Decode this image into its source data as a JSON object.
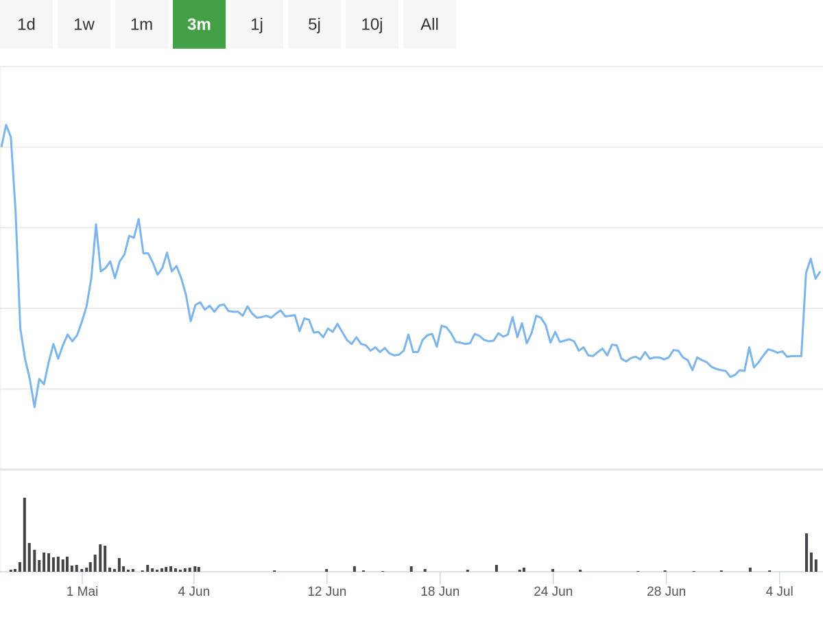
{
  "range_buttons": {
    "labels": [
      "1d",
      "1w",
      "1m",
      "3m",
      "1j",
      "5j",
      "10j",
      "All"
    ],
    "active": 3
  },
  "chart_data": [
    {
      "type": "line",
      "series": [
        {
          "color": "#7cb5ec",
          "values": [
            480,
            513,
            495,
            385,
            210,
            165,
            135,
            93,
            135,
            127,
            160,
            187,
            165,
            185,
            201,
            191,
            200,
            220,
            243,
            285,
            365,
            295,
            300,
            310,
            285,
            310,
            320,
            348,
            345,
            373,
            322,
            322,
            308,
            290,
            300,
            323,
            295,
            303,
            285,
            260,
            221,
            245,
            249,
            238,
            244,
            235,
            244,
            246,
            236,
            235,
            235,
            229,
            243,
            232,
            226,
            227,
            229,
            226,
            232,
            237,
            228,
            229,
            230,
            206,
            225,
            223,
            204,
            205,
            197,
            210,
            205,
            217,
            205,
            193,
            187,
            197,
            187,
            185,
            177,
            182,
            175,
            181,
            173,
            170,
            171,
            177,
            201,
            175,
            175,
            193,
            200,
            202,
            183,
            214,
            212,
            203,
            190,
            189,
            187,
            188,
            202,
            199,
            193,
            191,
            192,
            203,
            198,
            201,
            227,
            197,
            218,
            188,
            203,
            229,
            226,
            215,
            189,
            205,
            190,
            192,
            194,
            191,
            177,
            182,
            170,
            169,
            175,
            180,
            170,
            186,
            185,
            165,
            161,
            166,
            168,
            164,
            175,
            165,
            167,
            167,
            164,
            167,
            178,
            177,
            167,
            163,
            148,
            167,
            163,
            160,
            153,
            150,
            148,
            147,
            138,
            141,
            148,
            147,
            182,
            152,
            160,
            170,
            179,
            177,
            174,
            176,
            168,
            169,
            169,
            169,
            293,
            314,
            284,
            295
          ]
        }
      ],
      "xlim": [
        0,
        173
      ],
      "xticks": [
        {
          "value": 17.1,
          "label": "1 Mai"
        },
        {
          "value": 40.7,
          "label": "4 Jun"
        },
        {
          "value": 68.8,
          "label": "12 Jun"
        },
        {
          "value": 92.7,
          "label": "18 Jun"
        },
        {
          "value": 116.6,
          "label": "24 Jun"
        },
        {
          "value": 140.5,
          "label": "28 Jun"
        },
        {
          "value": 164.4,
          "label": "4 Jul"
        }
      ],
      "ylim": [
        0,
        600
      ],
      "yticks": [
        0,
        120,
        240,
        360,
        480,
        600
      ],
      "grid": true
    },
    {
      "type": "bar",
      "color": "#434348",
      "x": [
        2.0,
        2.9,
        3.9,
        4.9,
        5.9,
        7.0,
        8.0,
        9.0,
        10.0,
        11.0,
        12.0,
        13.0,
        13.9,
        14.9,
        15.9,
        17.0,
        18.0,
        18.8,
        19.8,
        20.9,
        21.9,
        22.9,
        23.9,
        24.9,
        25.8,
        26.8,
        27.8,
        29.8,
        30.9,
        31.9,
        32.9,
        33.9,
        34.8,
        35.8,
        36.8,
        37.8,
        38.8,
        39.8,
        40.9,
        41.7,
        57.7,
        68.7,
        74.6,
        76.5,
        80.6,
        86.6,
        89.5,
        98.5,
        104.6,
        109.5,
        110.4,
        116.5,
        122.3,
        134.5,
        140.2,
        146.3,
        152.1,
        158.2,
        162.3,
        170.1,
        171.1,
        172.1
      ],
      "values": [
        3,
        4,
        14,
        108,
        42,
        32,
        17,
        28,
        27,
        21,
        22,
        18,
        22,
        9,
        10,
        4,
        6,
        14,
        25,
        40,
        38,
        6,
        4,
        20,
        8,
        3,
        4,
        2,
        10,
        5,
        3,
        5,
        7,
        8,
        5,
        3,
        5,
        6,
        8,
        7,
        2,
        4,
        8,
        2,
        1,
        8,
        4,
        3,
        10,
        3,
        6,
        4,
        3,
        1,
        2,
        1,
        2,
        6,
        2,
        56,
        28,
        18
      ],
      "xlim": [
        0,
        173
      ],
      "ylim": [
        0,
        146
      ]
    }
  ]
}
